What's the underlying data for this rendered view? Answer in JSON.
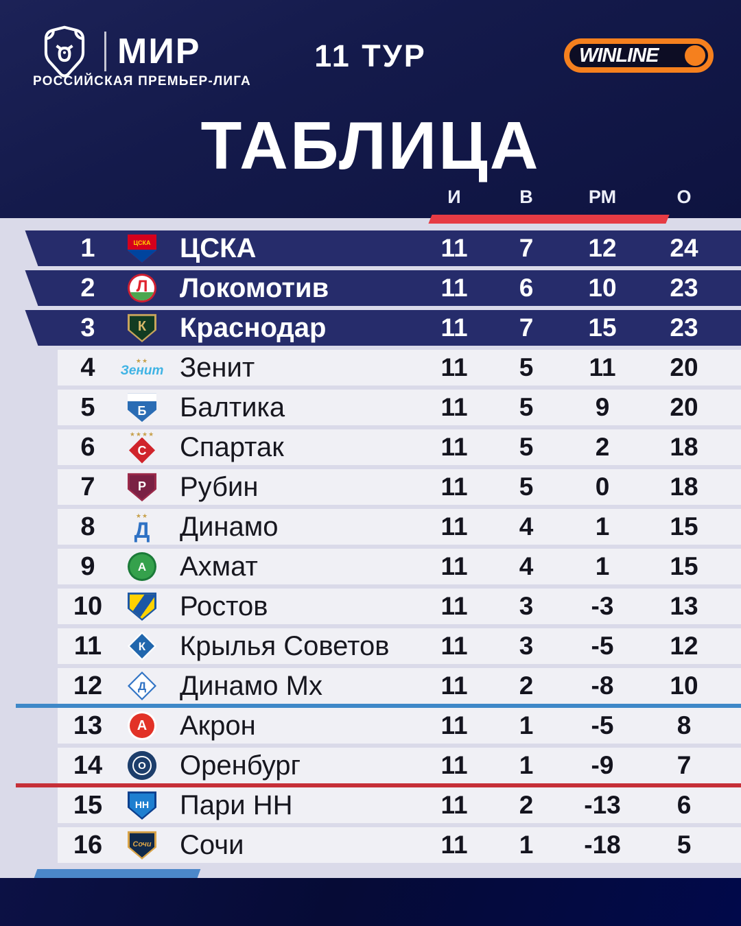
{
  "meta": {
    "league_name": "РОССИЙСКАЯ ПРЕМЬЕР-ЛИГА",
    "league_brand": "МИР",
    "round": "11 ТУР",
    "sponsor": "WINLINE",
    "title": "ТАБЛИЦА"
  },
  "colors": {
    "header_bg": "#141a4b",
    "page_bg": "#dadae9",
    "navy_row": "#262c6b",
    "light_row": "#f0f0f5",
    "accent_red": "#e63b44",
    "separator_blue": "#3e88c8",
    "separator_red": "#c62f38",
    "winline_orange": "#f5801e",
    "footer_bg": "#0a0f3e"
  },
  "chart_data": {
    "type": "table",
    "title": "ТАБЛИЦА",
    "round": "11 ТУР",
    "columns": [
      "И",
      "В",
      "РМ",
      "О"
    ],
    "rows": [
      {
        "place": "1",
        "team": "ЦСКА",
        "played": "11",
        "wins": "7",
        "goal_diff": "12",
        "points": "24",
        "highlight": true,
        "logo": {
          "name": "cska-logo",
          "shape": "shield",
          "bg": "#d6001c",
          "band": {
            "side": "bottom",
            "color": "#00449e",
            "size": 45
          },
          "label": "ЦСКА",
          "labelColor": "#ffd400",
          "labelSize": 9,
          "bold": true,
          "labelShift": -8
        }
      },
      {
        "place": "2",
        "team": "Локомотив",
        "played": "11",
        "wins": "6",
        "goal_diff": "10",
        "points": "23",
        "highlight": true,
        "logo": {
          "name": "lokomotiv-logo",
          "shape": "circle",
          "bg": "#ffffff",
          "border": "#cf2031",
          "band": {
            "side": "bottom",
            "color": "#4ca64f",
            "size": 34
          },
          "label": "Л",
          "labelColor": "#e0232d",
          "labelSize": 24,
          "bold": true,
          "labelShift": -2
        }
      },
      {
        "place": "3",
        "team": "Краснодар",
        "played": "11",
        "wins": "7",
        "goal_diff": "15",
        "points": "23",
        "highlight": true,
        "logo": {
          "name": "krasnodar-logo",
          "shape": "shield",
          "bg": "#123c22",
          "border": "#c8a55c",
          "label": "К",
          "labelColor": "#d9b96a",
          "labelSize": 20,
          "labelShift": -2
        }
      },
      {
        "place": "4",
        "team": "Зенит",
        "played": "11",
        "wins": "5",
        "goal_diff": "11",
        "points": "20",
        "logo": {
          "name": "zenit-logo",
          "shape": "text",
          "label": "Зенит",
          "labelColor": "#3fb3e4",
          "labelSize": 19,
          "italic": true,
          "bold": true,
          "stars": 2
        }
      },
      {
        "place": "5",
        "team": "Балтика",
        "played": "11",
        "wins": "5",
        "goal_diff": "9",
        "points": "20",
        "logo": {
          "name": "baltika-logo",
          "shape": "shield",
          "bg": "#2a6cb4",
          "band": {
            "side": "top",
            "color": "#ffffff",
            "size": 28
          },
          "label": "Б",
          "labelColor": "#ffffff",
          "labelSize": 18,
          "labelShift": 5
        }
      },
      {
        "place": "6",
        "team": "Спартак",
        "played": "11",
        "wins": "5",
        "goal_diff": "2",
        "points": "18",
        "logo": {
          "name": "spartak-logo",
          "shape": "diamond",
          "bg": "#d0242b",
          "label": "С",
          "labelColor": "#ffffff",
          "labelSize": 18,
          "bold": true,
          "stars": 4
        }
      },
      {
        "place": "7",
        "team": "Рубин",
        "played": "11",
        "wins": "5",
        "goal_diff": "0",
        "points": "18",
        "logo": {
          "name": "rubin-logo",
          "shape": "shield",
          "bg": "#7a2144",
          "border": "#9b2a4a",
          "label": "Р",
          "labelColor": "#ffffff",
          "labelSize": 18,
          "labelShift": -1
        }
      },
      {
        "place": "8",
        "team": "Динамо",
        "played": "11",
        "wins": "4",
        "goal_diff": "1",
        "points": "15",
        "logo": {
          "name": "dinamo-logo",
          "shape": "text",
          "label": "Д",
          "labelColor": "#2f72c4",
          "labelSize": 32,
          "bold": true,
          "stars": 2
        }
      },
      {
        "place": "9",
        "team": "Ахмат",
        "played": "11",
        "wins": "4",
        "goal_diff": "1",
        "points": "15",
        "logo": {
          "name": "akhmat-logo",
          "shape": "circle",
          "bg": "#35a14c",
          "border": "#1b7a38",
          "label": "А",
          "labelColor": "#ffffff",
          "labelSize": 17,
          "bold": true
        }
      },
      {
        "place": "10",
        "team": "Ростов",
        "played": "11",
        "wins": "3",
        "goal_diff": "-3",
        "points": "13",
        "logo": {
          "name": "rostov-logo",
          "shape": "shield",
          "bg": "#ffd200",
          "border": "#1c57a5",
          "band": {
            "side": "diag",
            "color": "#1c57a5"
          },
          "label": "",
          "labelColor": "#ffffff",
          "labelSize": 10
        }
      },
      {
        "place": "11",
        "team": "Крылья Советов",
        "played": "11",
        "wins": "3",
        "goal_diff": "-5",
        "points": "12",
        "logo": {
          "name": "krylia-sovetov-logo",
          "shape": "diamond",
          "bg": "#2066ad",
          "border": "#ffffff",
          "label": "К",
          "labelColor": "#ffffff",
          "labelSize": 17,
          "bold": true
        }
      },
      {
        "place": "12",
        "team": "Динамо Мх",
        "played": "11",
        "wins": "2",
        "goal_diff": "-8",
        "points": "10",
        "logo": {
          "name": "dinamo-mkh-logo",
          "shape": "diamond",
          "bg": "#ffffff",
          "border": "#2f72c4",
          "label": "Д",
          "labelColor": "#2f72c4",
          "labelSize": 17,
          "bold": true
        }
      },
      {
        "place": "13",
        "team": "Акрон",
        "played": "11",
        "wins": "1",
        "goal_diff": "-5",
        "points": "8",
        "logo": {
          "name": "akron-logo",
          "shape": "circle",
          "bg": "#e23227",
          "border": "#ffffff",
          "label": "А",
          "labelColor": "#ffffff",
          "labelSize": 20,
          "bold": true
        }
      },
      {
        "place": "14",
        "team": "Оренбург",
        "played": "11",
        "wins": "1",
        "goal_diff": "-9",
        "points": "7",
        "logo": {
          "name": "orenburg-logo",
          "shape": "circle",
          "bg": "#1d3e6b",
          "ring": true,
          "label": "О",
          "labelColor": "#ffffff",
          "labelSize": 15,
          "bold": true
        }
      },
      {
        "place": "15",
        "team": "Пари НН",
        "played": "11",
        "wins": "2",
        "goal_diff": "-13",
        "points": "6",
        "logo": {
          "name": "pari-nn-logo",
          "shape": "shield",
          "bg": "#1e7fd0",
          "border": "#0c3f8e",
          "label": "НН",
          "labelColor": "#ffffff",
          "labelSize": 14,
          "bold": true,
          "labelShift": -1
        }
      },
      {
        "place": "16",
        "team": "Сочи",
        "played": "11",
        "wins": "1",
        "goal_diff": "-18",
        "points": "5",
        "logo": {
          "name": "sochi-logo",
          "shape": "shield",
          "bg": "#10294b",
          "border": "#d8a348",
          "label": "Сочи",
          "labelColor": "#d8a348",
          "labelSize": 11,
          "italic": true,
          "bold": true,
          "labelShift": -1
        }
      }
    ],
    "separators": [
      {
        "after_place": 12,
        "color": "#3e88c8",
        "meaning": "line-after-row-12"
      },
      {
        "after_place": 14,
        "color": "#c62f38",
        "meaning": "line-after-row-14"
      }
    ],
    "legend_position": "none",
    "grid": false
  }
}
